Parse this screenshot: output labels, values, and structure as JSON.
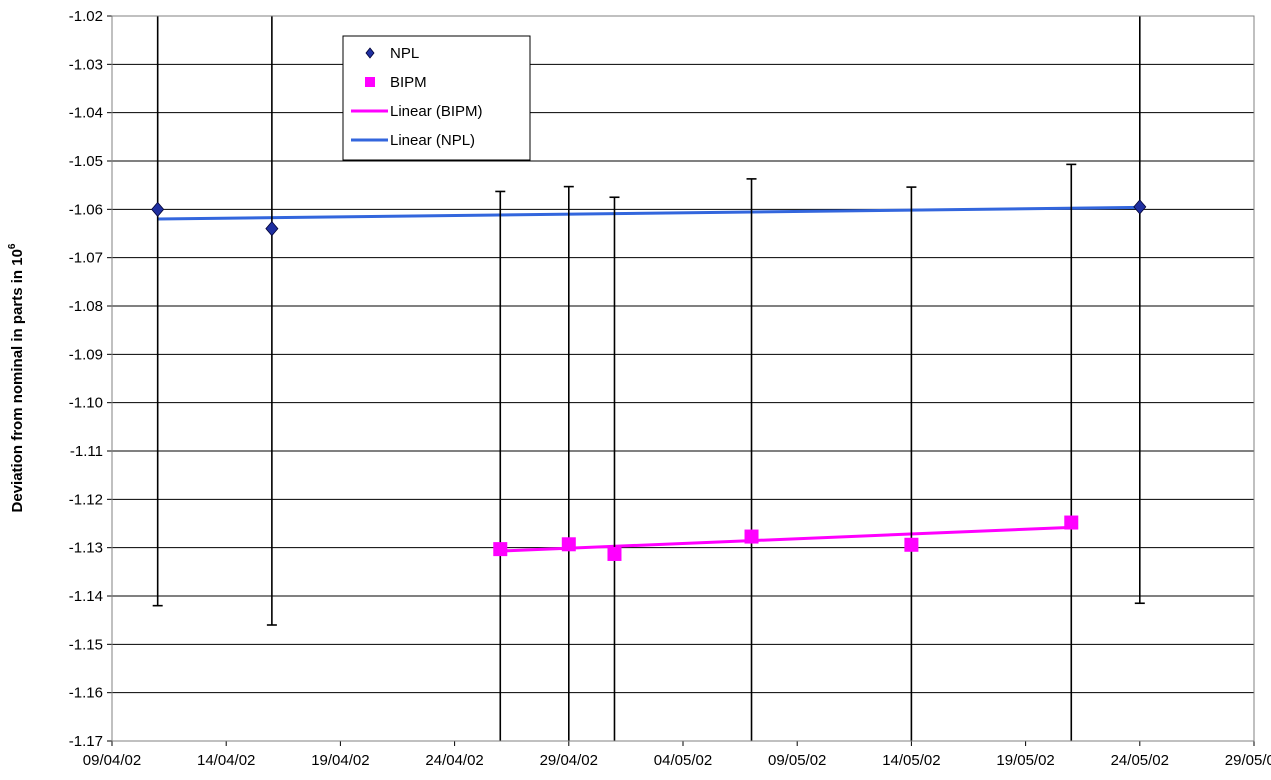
{
  "chart_data": {
    "type": "scatter",
    "ylabel": "Deviation from nominal in parts in 10",
    "ylabel_superscript": "6",
    "xlim": [
      "09/04/02",
      "29/05/02"
    ],
    "x_tick_labels": [
      "09/04/02",
      "14/04/02",
      "19/04/02",
      "24/04/02",
      "29/04/02",
      "04/05/02",
      "09/05/02",
      "14/05/02",
      "19/05/02",
      "24/05/02",
      "29/05/02"
    ],
    "ylim": [
      -1.17,
      -1.02
    ],
    "y_tick_labels": [
      "-1.02",
      "-1.03",
      "-1.04",
      "-1.05",
      "-1.06",
      "-1.07",
      "-1.08",
      "-1.09",
      "-1.10",
      "-1.11",
      "-1.12",
      "-1.13",
      "-1.14",
      "-1.15",
      "-1.16",
      "-1.17"
    ],
    "grid": "horizontal",
    "legend_position": "top-left",
    "series": [
      {
        "name": "NPL",
        "marker": "diamond",
        "color": "#1F2FA0",
        "points": [
          {
            "x": "11/04/02",
            "y": -1.06,
            "err_low": -1.142,
            "err_high": -1.02
          },
          {
            "x": "16/04/02",
            "y": -1.064,
            "err_low": -1.146,
            "err_high": -1.02
          },
          {
            "x": "24/05/02",
            "y": -1.0595,
            "err_low": -1.1415,
            "err_high": -1.02
          }
        ]
      },
      {
        "name": "BIPM",
        "marker": "square",
        "color": "#FF00FF",
        "points": [
          {
            "x": "26/04/02",
            "y": -1.1303,
            "err_low": -1.17,
            "err_high": -1.0563
          },
          {
            "x": "29/04/02",
            "y": -1.1293,
            "err_low": -1.17,
            "err_high": -1.0553
          },
          {
            "x": "01/05/02",
            "y": -1.1313,
            "err_low": -1.17,
            "err_high": -1.0575
          },
          {
            "x": "07/05/02",
            "y": -1.1277,
            "err_low": -1.17,
            "err_high": -1.0537
          },
          {
            "x": "14/05/02",
            "y": -1.1294,
            "err_low": -1.17,
            "err_high": -1.0554
          },
          {
            "x": "21/05/02",
            "y": -1.1248,
            "err_low": -1.17,
            "err_high": -1.0507
          }
        ]
      }
    ],
    "trendlines": [
      {
        "name": "Linear (BIPM)",
        "color": "#FF00FF",
        "from": {
          "x": "26/04/02",
          "y": -1.1307
        },
        "to": {
          "x": "21/05/02",
          "y": -1.1258
        }
      },
      {
        "name": "Linear (NPL)",
        "color": "#3366DD",
        "from": {
          "x": "11/04/02",
          "y": -1.062
        },
        "to": {
          "x": "24/05/02",
          "y": -1.0596
        }
      }
    ]
  }
}
